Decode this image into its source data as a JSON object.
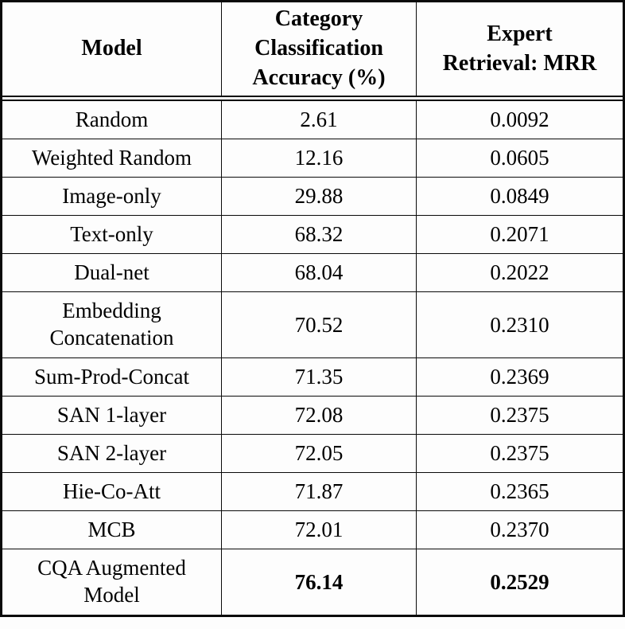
{
  "accent_color": "#000000",
  "background_color": "#fdfdfd",
  "table": {
    "headers": [
      "Model",
      "Category Classification Accuracy (%)",
      "Expert Retrieval: MRR"
    ],
    "rows": [
      {
        "model": "Random",
        "accuracy": "2.61",
        "mrr": "0.0092",
        "emphasized": false
      },
      {
        "model": "Weighted Random",
        "accuracy": "12.16",
        "mrr": "0.0605",
        "emphasized": false
      },
      {
        "model": "Image-only",
        "accuracy": "29.88",
        "mrr": "0.0849",
        "emphasized": false
      },
      {
        "model": "Text-only",
        "accuracy": "68.32",
        "mrr": "0.2071",
        "emphasized": false
      },
      {
        "model": "Dual-net",
        "accuracy": "68.04",
        "mrr": "0.2022",
        "emphasized": false
      },
      {
        "model": "Embedding Concatenation",
        "accuracy": "70.52",
        "mrr": "0.2310",
        "emphasized": false
      },
      {
        "model": "Sum-Prod-Concat",
        "accuracy": "71.35",
        "mrr": "0.2369",
        "emphasized": false
      },
      {
        "model": "SAN 1-layer",
        "accuracy": "72.08",
        "mrr": "0.2375",
        "emphasized": false
      },
      {
        "model": "SAN 2-layer",
        "accuracy": "72.05",
        "mrr": "0.2375",
        "emphasized": false
      },
      {
        "model": "Hie-Co-Att",
        "accuracy": "71.87",
        "mrr": "0.2365",
        "emphasized": false
      },
      {
        "model": "MCB",
        "accuracy": "72.01",
        "mrr": "0.2370",
        "emphasized": false
      },
      {
        "model": "CQA Augmented Model",
        "accuracy": "76.14",
        "mrr": "0.2529",
        "emphasized": true
      }
    ]
  }
}
